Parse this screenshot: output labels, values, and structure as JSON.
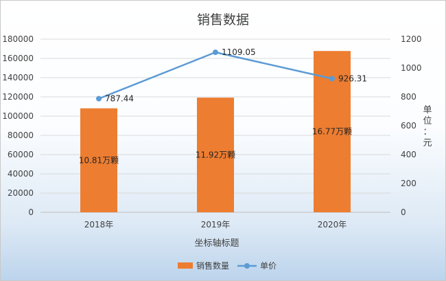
{
  "chart_data": {
    "type": "bar",
    "title": "销售数据",
    "xlabel": "坐标轴标题",
    "y2label": "单位：元",
    "categories": [
      "2018年",
      "2019年",
      "2020年"
    ],
    "ylim": [
      0,
      180000
    ],
    "y_ticks": [
      "0",
      "20000",
      "40000",
      "60000",
      "80000",
      "100000",
      "120000",
      "140000",
      "160000",
      "180000"
    ],
    "y2lim": [
      0,
      1200
    ],
    "y2_ticks": [
      "0",
      "200",
      "400",
      "600",
      "800",
      "1000",
      "1200"
    ],
    "grid": true,
    "legend_position": "bottom",
    "series": [
      {
        "name": "销售数量",
        "type": "bar",
        "axis": "left",
        "color": "#ed7d31",
        "values": [
          108100,
          119200,
          167700
        ],
        "data_labels": [
          "10.81万颗",
          "11.92万颗",
          "16.77万颗"
        ]
      },
      {
        "name": "单价",
        "type": "line",
        "axis": "right",
        "color": "#5b9bd5",
        "values": [
          787.44,
          1109.05,
          926.31
        ],
        "data_labels": [
          "787.44",
          "1109.05",
          "926.31"
        ]
      }
    ]
  }
}
